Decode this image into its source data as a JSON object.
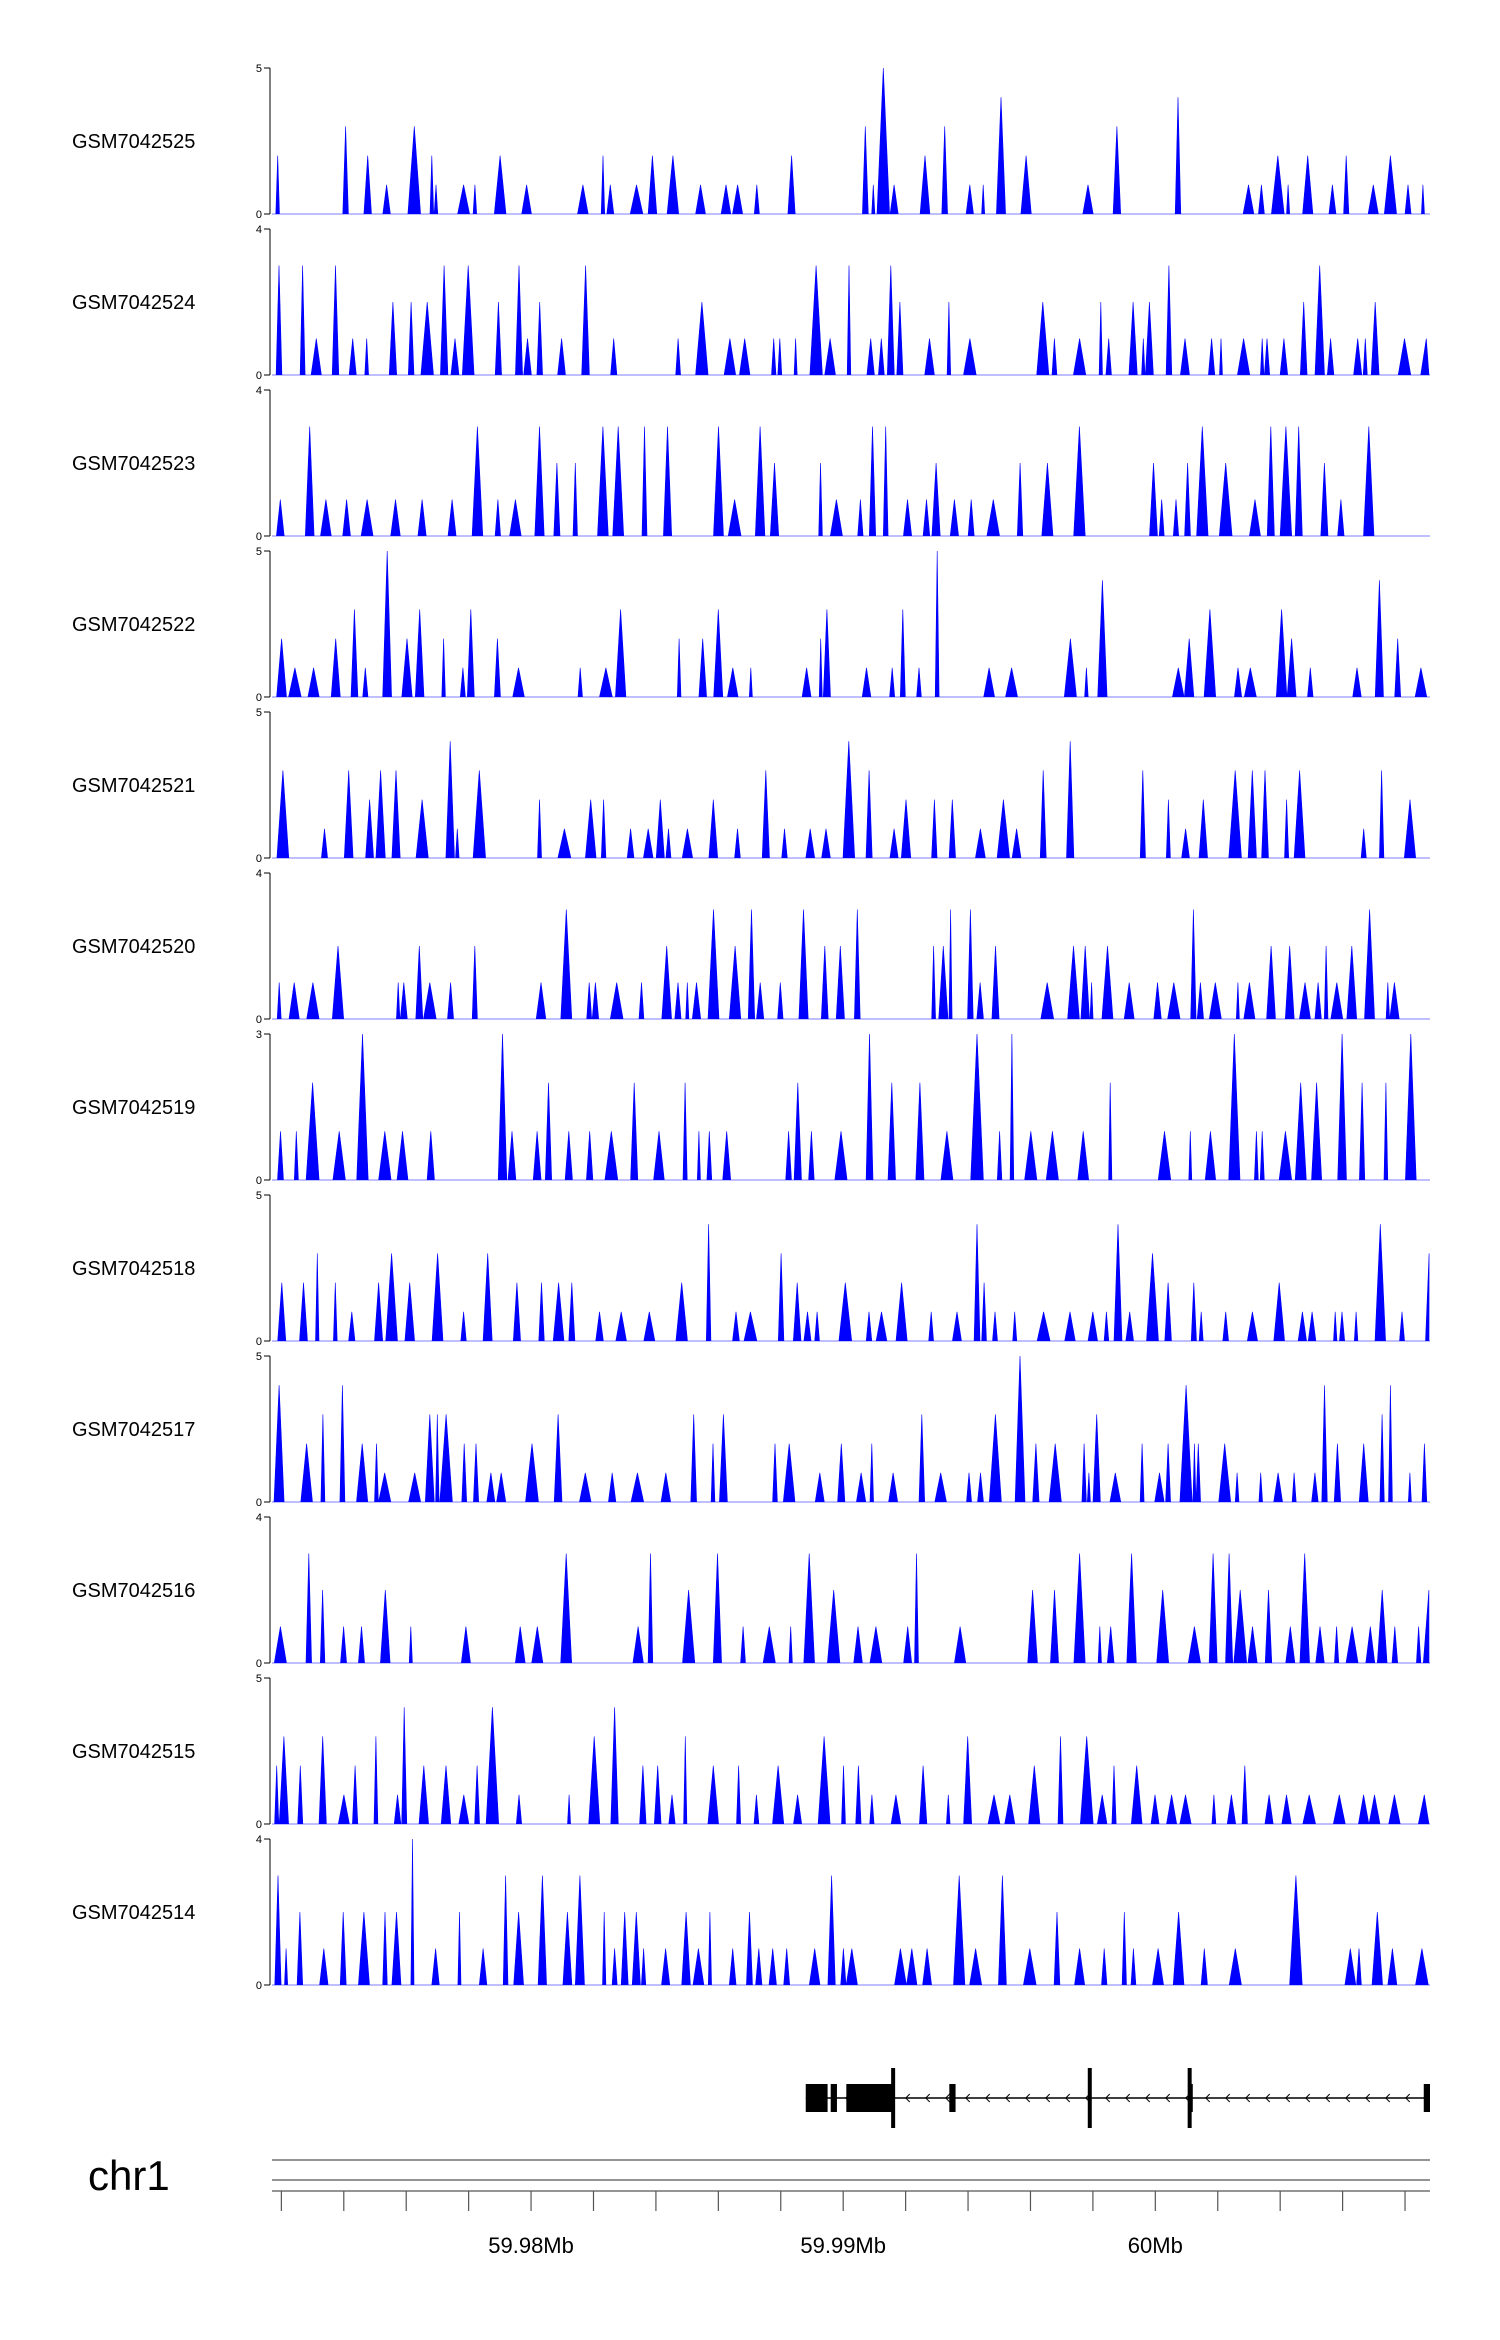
{
  "chart_data": {
    "type": "area",
    "colors": {
      "signal": "#0000ff",
      "gene": "#000000",
      "axis": "#000000",
      "ruler": "#555555"
    },
    "tracks": [
      {
        "name": "GSM7042525",
        "ymax": 5,
        "ymin_label": "0",
        "ymax_label": "5"
      },
      {
        "name": "GSM7042524",
        "ymax": 4,
        "ymin_label": "0",
        "ymax_label": "4"
      },
      {
        "name": "GSM7042523",
        "ymax": 4,
        "ymin_label": "0",
        "ymax_label": "4"
      },
      {
        "name": "GSM7042522",
        "ymax": 5,
        "ymin_label": "0",
        "ymax_label": "5"
      },
      {
        "name": "GSM7042521",
        "ymax": 5,
        "ymin_label": "0",
        "ymax_label": "5"
      },
      {
        "name": "GSM7042520",
        "ymax": 4,
        "ymin_label": "0",
        "ymax_label": "4"
      },
      {
        "name": "GSM7042519",
        "ymax": 3,
        "ymin_label": "0",
        "ymax_label": "3"
      },
      {
        "name": "GSM7042518",
        "ymax": 5,
        "ymin_label": "0",
        "ymax_label": "5"
      },
      {
        "name": "GSM7042517",
        "ymax": 5,
        "ymin_label": "0",
        "ymax_label": "5"
      },
      {
        "name": "GSM7042516",
        "ymax": 4,
        "ymin_label": "0",
        "ymax_label": "4"
      },
      {
        "name": "GSM7042515",
        "ymax": 5,
        "ymin_label": "0",
        "ymax_label": "5"
      },
      {
        "name": "GSM7042514",
        "ymax": 4,
        "ymin_label": "0",
        "ymax_label": "4"
      }
    ],
    "genome_axis": {
      "chromosome": "chr1",
      "unit": "Mb",
      "range": [
        59.9717,
        60.0088
      ],
      "major_ticks": [
        {
          "pos": 59.98,
          "label": "59.98Mb"
        },
        {
          "pos": 59.99,
          "label": "59.99Mb"
        },
        {
          "pos": 60.0,
          "label": "60Mb"
        }
      ],
      "minor_tick_step": 0.002
    },
    "gene_model": {
      "strand": "-",
      "span": [
        59.9888,
        60.0088
      ],
      "thin_blocks": [
        [
          59.9896,
          59.9898
        ],
        [
          59.9934,
          59.9936
        ],
        [
          60.0011,
          60.0012
        ],
        [
          60.0086,
          60.0088
        ]
      ],
      "thick_blocks": [
        [
          59.9888,
          59.9895
        ],
        [
          59.9901,
          59.9916
        ]
      ],
      "tall_marks": [
        59.9916,
        59.9979,
        60.0011
      ]
    }
  }
}
